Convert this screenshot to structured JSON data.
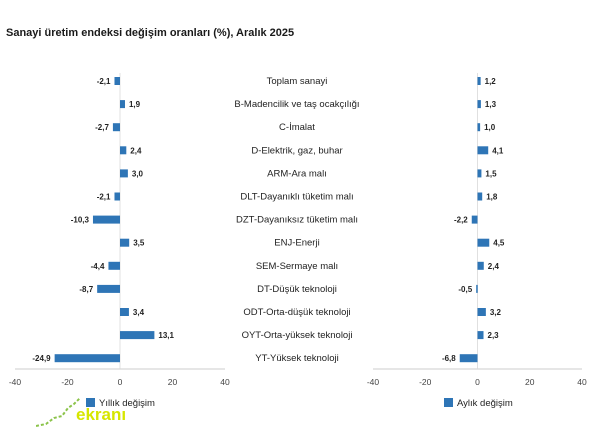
{
  "title": "Sanayi üretim endeksi değişim oranları (%), Aralık 2025",
  "chart_data": {
    "type": "bar",
    "orientation": "horizontal",
    "categories": [
      "Toplam sanayi",
      "B-Madencilik ve taş ocakçılığı",
      "C-İmalat",
      "D-Elektrik, gaz, buhar",
      "ARM-Ara malı",
      "DLT-Dayanıklı tüketim malı",
      "DZT-Dayanıksız tüketim malı",
      "ENJ-Enerji",
      "SEM-Sermaye malı",
      "DT-Düşük teknoloji",
      "ODT-Orta-düşük teknoloji",
      "OYT-Orta-yüksek teknoloji",
      "YT-Yüksek teknoloji"
    ],
    "series": [
      {
        "name": "Yıllık değişim",
        "values": [
          -2.1,
          1.9,
          -2.7,
          2.4,
          3.0,
          -2.1,
          -10.3,
          3.5,
          -4.4,
          -8.7,
          3.4,
          13.1,
          -24.9
        ],
        "labels": [
          "-2,1",
          "1,9",
          "-2,7",
          "2,4",
          "3,0",
          "-2,1",
          "-10,3",
          "3,5",
          "-4,4",
          "-8,7",
          "3,4",
          "13,1",
          "-24,9"
        ],
        "xlim": [
          -40,
          40
        ],
        "ticks": [
          "-40",
          "-20",
          "0",
          "20",
          "40"
        ]
      },
      {
        "name": "Aylık değişim",
        "values": [
          1.2,
          1.3,
          1.0,
          4.1,
          1.5,
          1.8,
          -2.2,
          4.5,
          2.4,
          -0.5,
          3.2,
          2.3,
          -6.8
        ],
        "labels": [
          "1,2",
          "1,3",
          "1,0",
          "4,1",
          "1,5",
          "1,8",
          "-2,2",
          "4,5",
          "2,4",
          "-0,5",
          "3,2",
          "2,3",
          "-6,8"
        ],
        "xlim": [
          -40,
          40
        ],
        "ticks": [
          "-40",
          "-20",
          "0",
          "20",
          "40"
        ]
      }
    ],
    "bar_color": "#2e75b6",
    "legend_placement": "bottom",
    "grid": false
  },
  "watermark": {
    "text": "ekranı"
  }
}
